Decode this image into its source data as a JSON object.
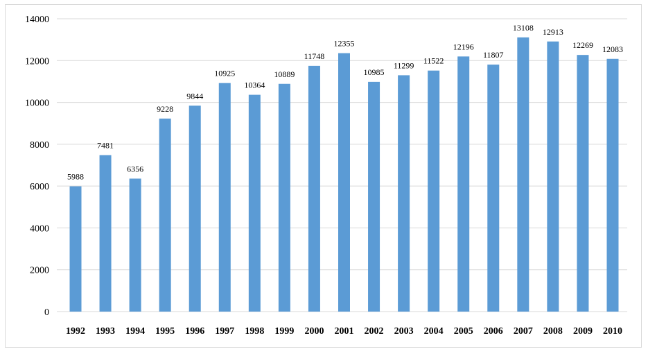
{
  "chart_data": {
    "type": "bar",
    "title": "",
    "xlabel": "",
    "ylabel": "",
    "categories": [
      "1992",
      "1993",
      "1994",
      "1995",
      "1996",
      "1997",
      "1998",
      "1999",
      "2000",
      "2001",
      "2002",
      "2003",
      "2004",
      "2005",
      "2006",
      "2007",
      "2008",
      "2009",
      "2010"
    ],
    "values": [
      5988,
      7481,
      6356,
      9228,
      9844,
      10925,
      10364,
      10889,
      11748,
      12355,
      10985,
      11299,
      11522,
      12196,
      11807,
      13108,
      12913,
      12269,
      12083
    ],
    "ylim": [
      0,
      14000
    ],
    "yticks": [
      0,
      2000,
      4000,
      6000,
      8000,
      10000,
      12000,
      14000
    ],
    "grid": true,
    "legend": "none",
    "data_labels": true,
    "colors": {
      "bar": "#5b9bd5",
      "grid": "#d9d9d9"
    }
  }
}
